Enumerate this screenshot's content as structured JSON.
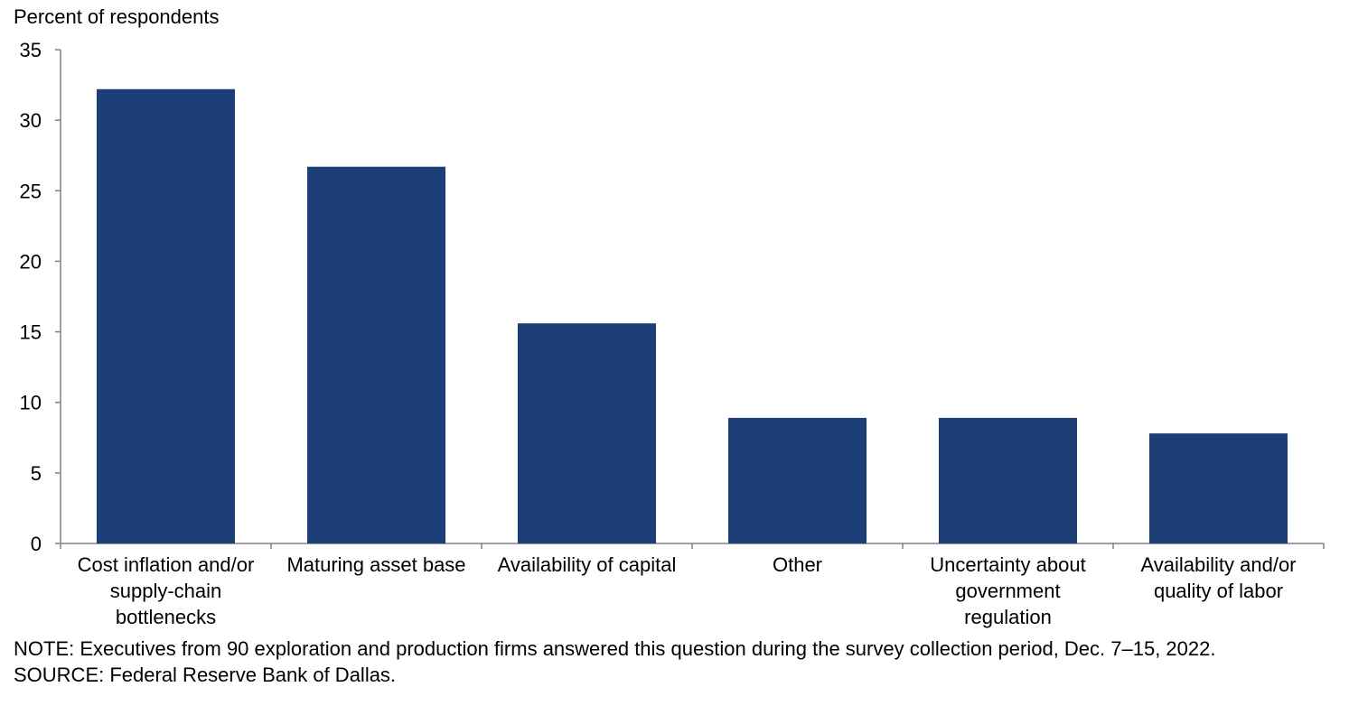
{
  "chart_data": {
    "type": "bar",
    "ylabel": "Percent of respondents",
    "categories": [
      [
        "Cost inflation and/or",
        "supply-chain",
        "bottlenecks"
      ],
      [
        "Maturing asset base"
      ],
      [
        "Availability of capital"
      ],
      [
        "Other"
      ],
      [
        "Uncertainty about",
        "government",
        "regulation"
      ],
      [
        "Availability and/or",
        "quality of labor"
      ]
    ],
    "values": [
      32.2,
      26.7,
      15.6,
      8.9,
      8.9,
      7.8
    ],
    "ylim": [
      0,
      35
    ],
    "yticks": [
      0,
      5,
      10,
      15,
      20,
      25,
      30,
      35
    ],
    "grid": false,
    "bar_color": "#1c3f77"
  },
  "note": "NOTE: Executives from 90 exploration and production firms answered this question during the survey collection period, Dec. 7–15, 2022.",
  "source": "SOURCE: Federal Reserve Bank of Dallas."
}
